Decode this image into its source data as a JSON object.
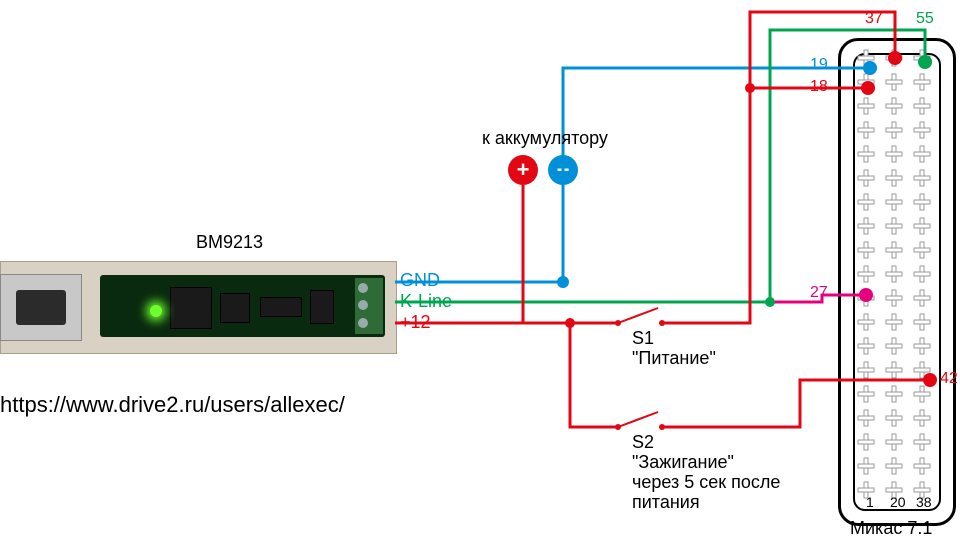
{
  "module_label": "BM9213",
  "url": "https://www.drive2.ru/users/allexec/",
  "signals": {
    "gnd": "GND",
    "kline": "K-Line",
    "plus12": "+12"
  },
  "battery_label": "к аккумулятору",
  "switches": {
    "s1_name": "S1",
    "s1_label": "\"Питание\"",
    "s2_name": "S2",
    "s2_label": "\"Зажигание\"",
    "s2_note1": "через 5 сек после",
    "s2_note2": "питания"
  },
  "connector_label": "Микас 7.1",
  "pins": {
    "p37": "37",
    "p55": "55",
    "p19": "19",
    "p18": "18",
    "p27": "27",
    "p42": "42",
    "p1": "1",
    "p20": "20",
    "p38": "38"
  },
  "colors": {
    "red": "#e30613",
    "blue": "#0090d7",
    "green": "#00a54f",
    "magenta": "#e6007e",
    "black": "#000000"
  },
  "fonts": {
    "label": 18,
    "pin": 16,
    "url": 22
  }
}
